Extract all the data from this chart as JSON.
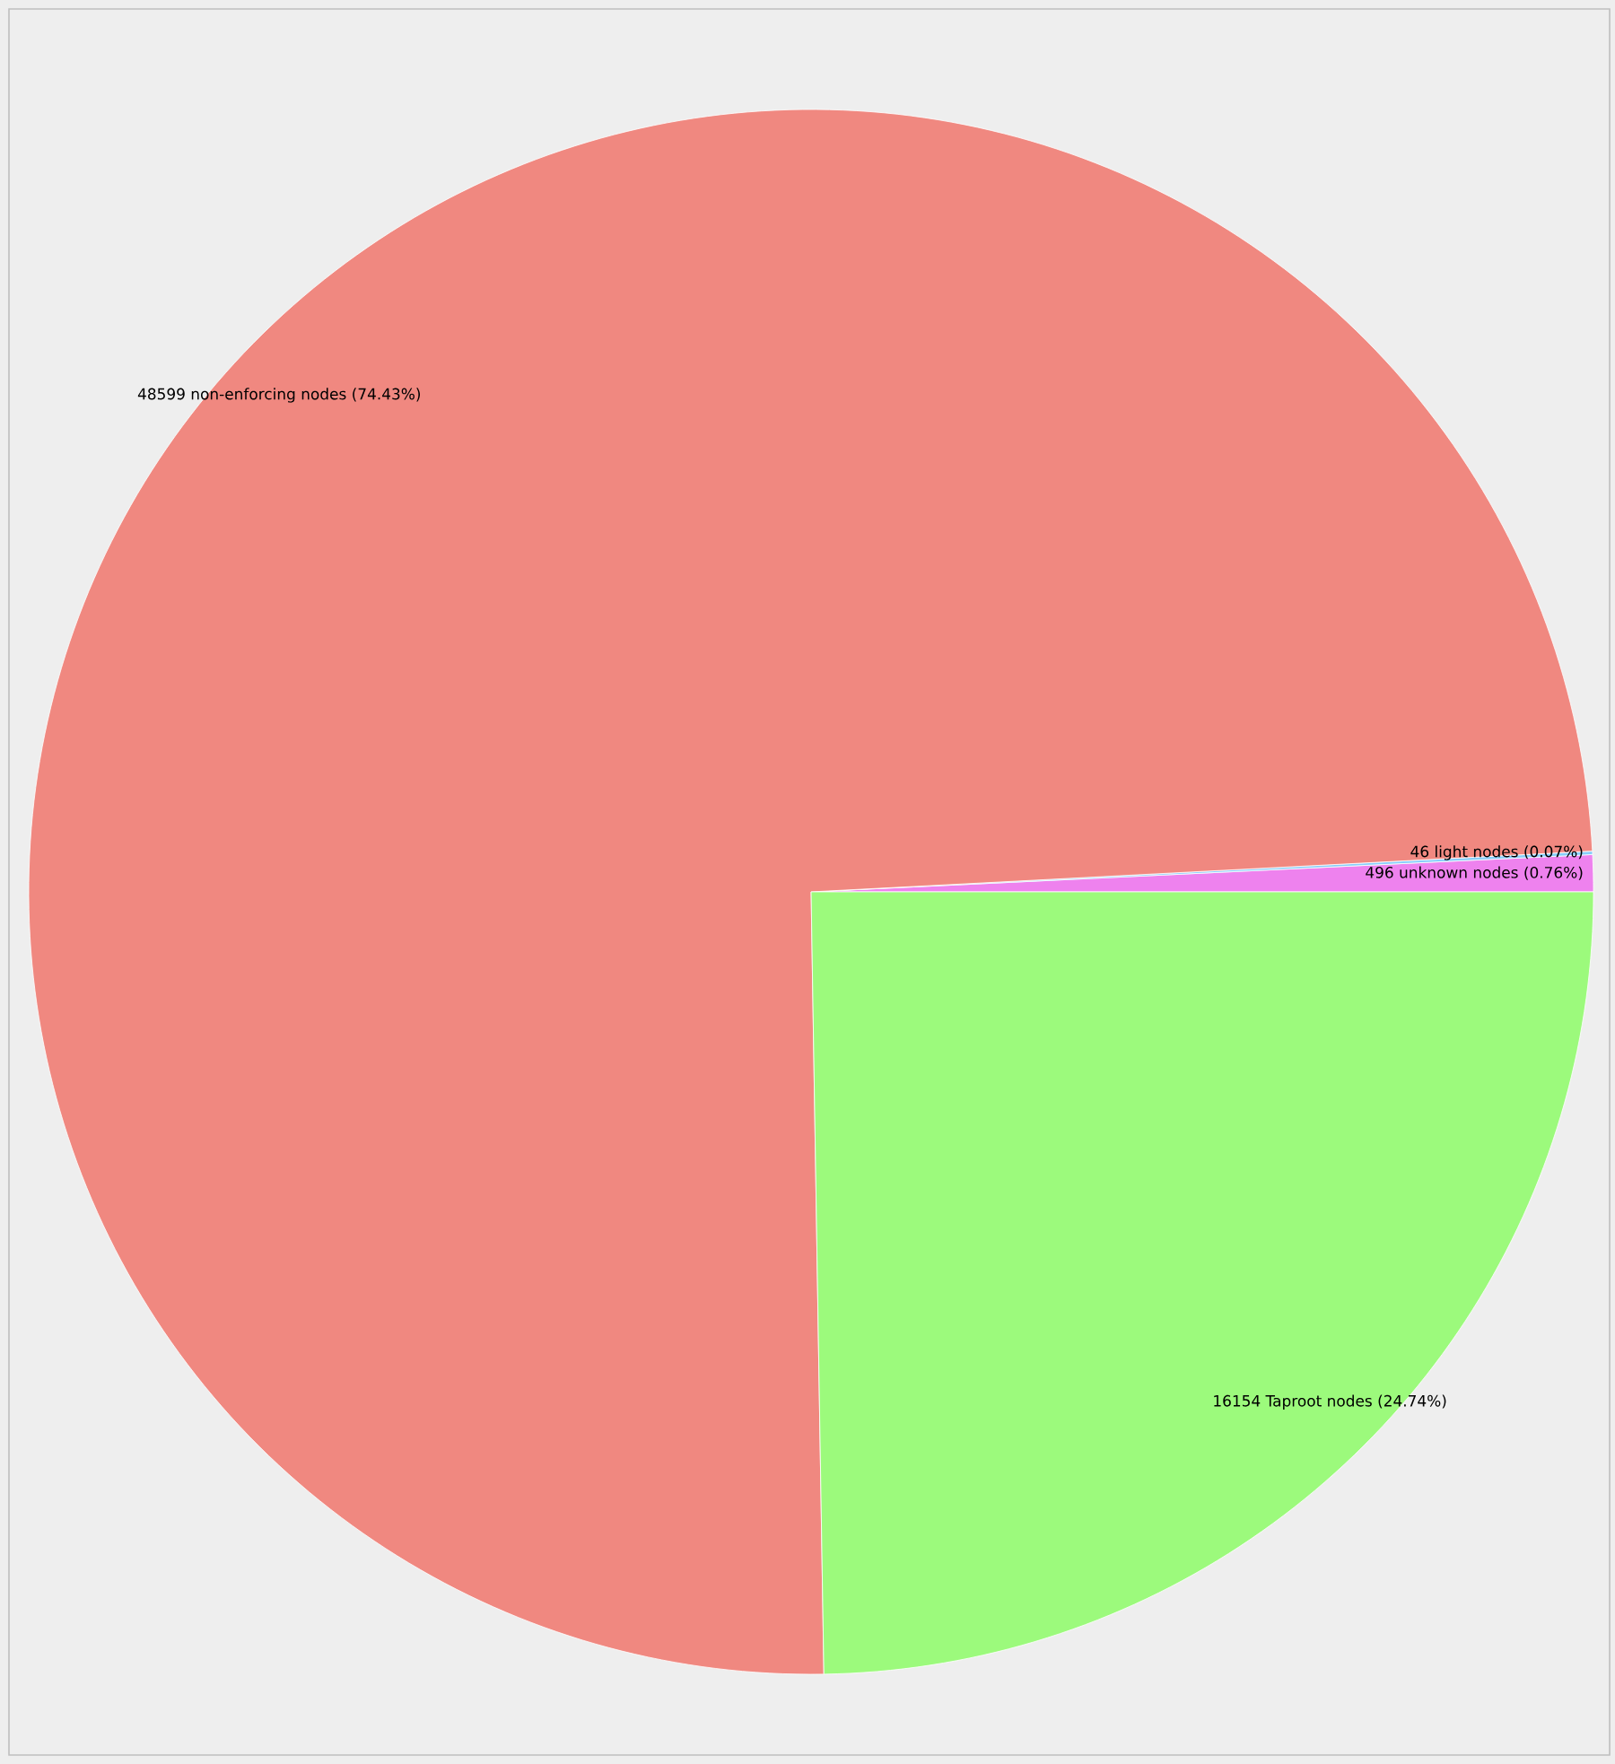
{
  "chart_data": {
    "type": "pie",
    "categories": [
      "496 unknown nodes (0.76%)",
      "46 light nodes (0.07%)",
      "48599 non-enforcing nodes (74.43%)",
      "16154 Taproot nodes (24.74%)"
    ],
    "values": [
      496,
      46,
      48599,
      16154
    ],
    "colors": [
      "#ee82ee",
      "#87cefa",
      "#f08880",
      "#9cfa7c"
    ]
  }
}
